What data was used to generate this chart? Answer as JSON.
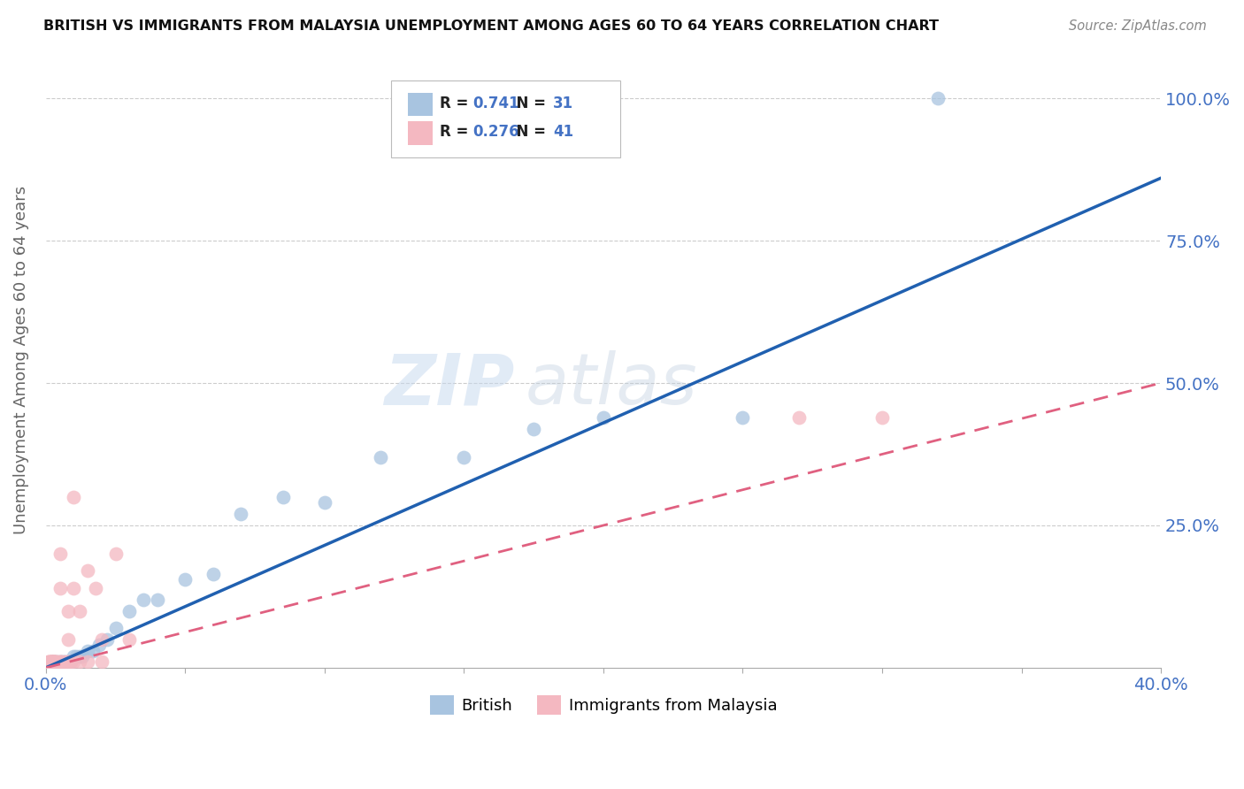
{
  "title": "BRITISH VS IMMIGRANTS FROM MALAYSIA UNEMPLOYMENT AMONG AGES 60 TO 64 YEARS CORRELATION CHART",
  "source": "Source: ZipAtlas.com",
  "ylabel": "Unemployment Among Ages 60 to 64 years",
  "xmin": 0.0,
  "xmax": 0.4,
  "ymin": 0.0,
  "ymax": 1.08,
  "x_ticks": [
    0.0,
    0.05,
    0.1,
    0.15,
    0.2,
    0.25,
    0.3,
    0.35,
    0.4
  ],
  "y_ticks": [
    0.0,
    0.25,
    0.5,
    0.75,
    1.0
  ],
  "british_color": "#a8c4e0",
  "malaysia_color": "#f4b8c1",
  "british_line_color": "#2060b0",
  "malaysia_line_color": "#e06080",
  "british_R": 0.741,
  "british_N": 31,
  "malaysia_R": 0.276,
  "malaysia_N": 41,
  "british_line_x0": 0.0,
  "british_line_y0": 0.0,
  "british_line_x1": 0.4,
  "british_line_y1": 0.86,
  "malaysia_line_x0": 0.0,
  "malaysia_line_y0": 0.0,
  "malaysia_line_x1": 0.4,
  "malaysia_line_y1": 0.5,
  "british_x": [
    0.002,
    0.003,
    0.004,
    0.005,
    0.006,
    0.007,
    0.008,
    0.009,
    0.01,
    0.011,
    0.012,
    0.013,
    0.015,
    0.017,
    0.019,
    0.022,
    0.025,
    0.03,
    0.035,
    0.04,
    0.05,
    0.06,
    0.07,
    0.085,
    0.1,
    0.12,
    0.15,
    0.175,
    0.2,
    0.25,
    0.32
  ],
  "british_y": [
    0.01,
    0.01,
    0.01,
    0.01,
    0.01,
    0.01,
    0.01,
    0.01,
    0.02,
    0.02,
    0.02,
    0.02,
    0.03,
    0.03,
    0.04,
    0.05,
    0.07,
    0.1,
    0.12,
    0.12,
    0.155,
    0.165,
    0.27,
    0.3,
    0.29,
    0.37,
    0.37,
    0.42,
    0.44,
    0.44,
    1.0
  ],
  "malaysia_x": [
    0.001,
    0.001,
    0.001,
    0.002,
    0.002,
    0.002,
    0.002,
    0.002,
    0.002,
    0.003,
    0.003,
    0.003,
    0.003,
    0.003,
    0.003,
    0.004,
    0.004,
    0.005,
    0.005,
    0.006,
    0.007,
    0.008,
    0.009,
    0.01,
    0.012,
    0.015,
    0.02,
    0.005,
    0.015,
    0.025,
    0.005,
    0.01,
    0.018,
    0.008,
    0.012,
    0.27,
    0.3,
    0.008,
    0.02,
    0.03,
    0.01
  ],
  "malaysia_y": [
    0.01,
    0.01,
    0.01,
    0.01,
    0.01,
    0.01,
    0.01,
    0.01,
    0.01,
    0.01,
    0.01,
    0.01,
    0.01,
    0.01,
    0.01,
    0.01,
    0.01,
    0.01,
    0.01,
    0.01,
    0.01,
    0.01,
    0.01,
    0.01,
    0.01,
    0.01,
    0.01,
    0.2,
    0.17,
    0.2,
    0.14,
    0.14,
    0.14,
    0.1,
    0.1,
    0.44,
    0.44,
    0.05,
    0.05,
    0.05,
    0.3
  ],
  "watermark_line1": "ZIP",
  "watermark_line2": "atlas",
  "background_color": "#ffffff",
  "grid_color": "#cccccc"
}
